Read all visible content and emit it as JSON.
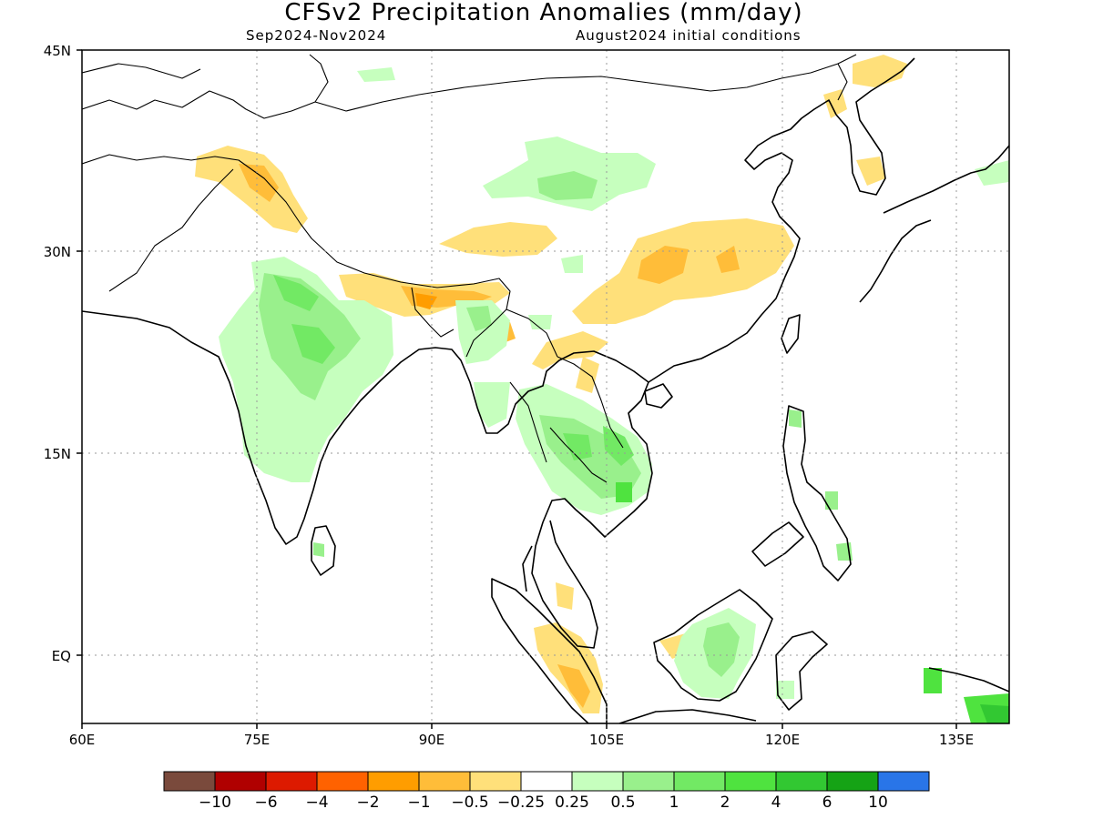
{
  "title": "CFSv2 Precipitation Anomalies (mm/day)",
  "period": "Sep2024-Nov2024",
  "init": "August2024 initial conditions",
  "lat_labels": [
    "45N",
    "30N",
    "15N",
    "EQ"
  ],
  "lon_labels": [
    "60E",
    "75E",
    "90E",
    "105E",
    "120E",
    "135E"
  ],
  "colorbar": {
    "colors": [
      "#7a4a3c",
      "#b00000",
      "#dd1a00",
      "#ff6200",
      "#ff9d00",
      "#ffbd39",
      "#ffe07a",
      "#ffffff",
      "#c6ffbe",
      "#99f08c",
      "#72e964",
      "#4fe33f",
      "#32c832",
      "#15a315",
      "#2975e8"
    ],
    "labels": [
      "−10",
      "−6",
      "−4",
      "−2",
      "−1",
      "−0.5",
      "−0.25",
      "0.25",
      "0.5",
      "1",
      "2",
      "4",
      "6",
      "10"
    ]
  },
  "map_layers": {
    "dry_anomalies": "orange/yellow patches: Himalaya/Tibet band, central-east China, NW India/Pakistan, Sumatra, NE China",
    "wet_anomalies": "green patches: central India, Indochina, Borneo, northwest China, New Guinea"
  }
}
